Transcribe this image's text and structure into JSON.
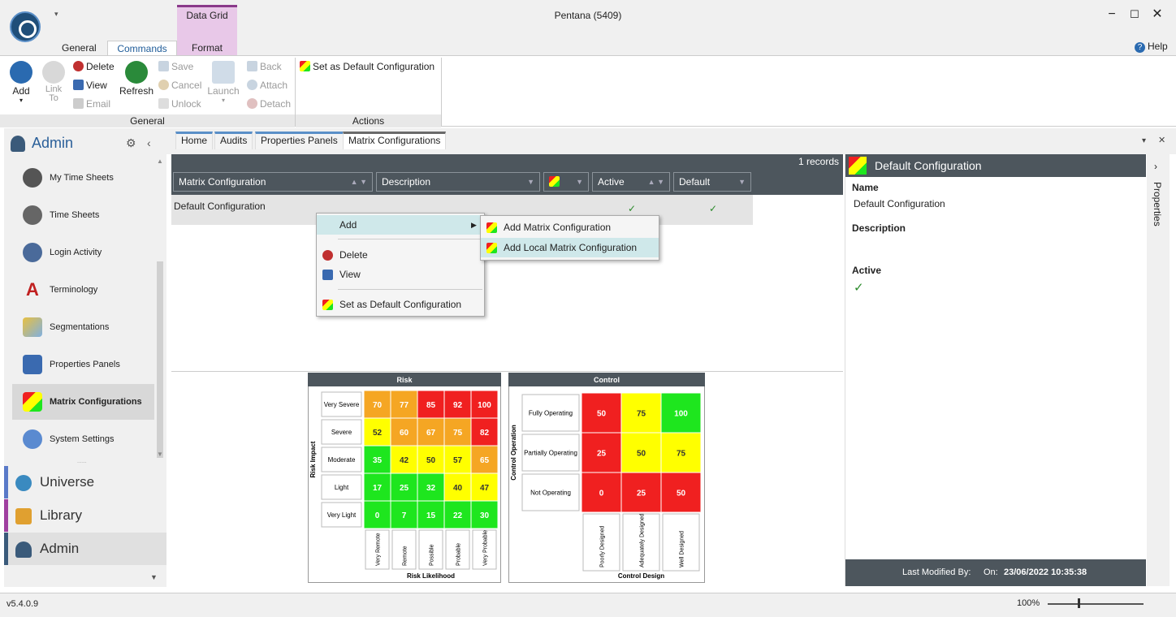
{
  "app": {
    "title": "Pentana (5409)",
    "qat": "▾",
    "help": "Help",
    "version": "v5.4.0.9",
    "zoom": "100%"
  },
  "ribbon": {
    "context_group": "Data Grid",
    "tabs": [
      "General",
      "Commands",
      "Format"
    ],
    "general": {
      "add": "Add",
      "link_to": "Link To",
      "delete": "Delete",
      "view": "View",
      "email": "Email",
      "refresh": "Refresh",
      "save": "Save",
      "cancel": "Cancel",
      "unlock": "Unlock",
      "launch": "Launch",
      "back": "Back",
      "attach": "Attach",
      "detach": "Detach",
      "label": "General"
    },
    "actions": {
      "set_default": "Set as Default Configuration",
      "label": "Actions"
    }
  },
  "left": {
    "header": "Admin",
    "items": [
      "My Time Sheets",
      "Time Sheets",
      "Login Activity",
      "Terminology",
      "Segmentations",
      "Properties Panels",
      "Matrix Configurations",
      "System Settings"
    ],
    "modules": [
      "Universe",
      "Library",
      "Admin"
    ],
    "grip": "......"
  },
  "doctabs": [
    "Home",
    "Audits",
    "Properties Panels",
    "Matrix Configurations"
  ],
  "grid": {
    "records": "1 records",
    "columns": [
      "Matrix Configuration",
      "Description",
      "",
      "Active",
      "Default"
    ],
    "rows": [
      {
        "name": "Default Configuration",
        "active": "✓",
        "default": "✓"
      }
    ]
  },
  "context_menu": {
    "add": "Add",
    "delete": "Delete",
    "view": "View",
    "set_default": "Set as Default Configuration"
  },
  "submenu": {
    "add_matrix": "Add Matrix Configuration",
    "add_local": "Add Local Matrix Configuration"
  },
  "risk": {
    "title": "Risk",
    "y_axis": "Risk Impact",
    "x_axis": "Risk Likelihood",
    "rows": [
      "Very Severe",
      "Severe",
      "Moderate",
      "Light",
      "Very Light"
    ],
    "cols": [
      "Very Remote",
      "Remote",
      "Possible",
      "Probable",
      "Very Probable"
    ],
    "values": [
      [
        70,
        77,
        85,
        92,
        100
      ],
      [
        52,
        60,
        67,
        75,
        82
      ],
      [
        35,
        42,
        50,
        57,
        65
      ],
      [
        17,
        25,
        32,
        40,
        47
      ],
      [
        0,
        7,
        15,
        22,
        30
      ]
    ],
    "colors": [
      [
        "#f5a623",
        "#f5a623",
        "#f02020",
        "#f02020",
        "#f02020"
      ],
      [
        "#ffff00",
        "#f5a623",
        "#f5a623",
        "#f5a623",
        "#f02020"
      ],
      [
        "#1ee61e",
        "#ffff00",
        "#ffff00",
        "#ffff00",
        "#f5a623"
      ],
      [
        "#1ee61e",
        "#1ee61e",
        "#1ee61e",
        "#ffff00",
        "#ffff00"
      ],
      [
        "#1ee61e",
        "#1ee61e",
        "#1ee61e",
        "#1ee61e",
        "#1ee61e"
      ]
    ]
  },
  "control": {
    "title": "Control",
    "y_axis": "Control Operation",
    "x_axis": "Control Design",
    "rows": [
      "Fully Operating",
      "Partially Operating",
      "Not Operating"
    ],
    "cols": [
      "Poorly Designed",
      "Adequately Designed",
      "Well Designed"
    ],
    "values": [
      [
        50,
        75,
        100
      ],
      [
        25,
        50,
        75
      ],
      [
        0,
        25,
        50
      ]
    ],
    "colors": [
      [
        "#f02020",
        "#ffff00",
        "#1ee61e"
      ],
      [
        "#f02020",
        "#ffff00",
        "#ffff00"
      ],
      [
        "#f02020",
        "#f02020",
        "#f02020"
      ]
    ]
  },
  "detail": {
    "title": "Default Configuration",
    "name_label": "Name",
    "name_value": "Default Configuration",
    "desc_label": "Description",
    "active_label": "Active",
    "active_value": "✓",
    "modified_label": "Last Modified By:",
    "on_label": "On:",
    "on_value": "23/06/2022 10:35:38",
    "side_tab": "Properties"
  }
}
